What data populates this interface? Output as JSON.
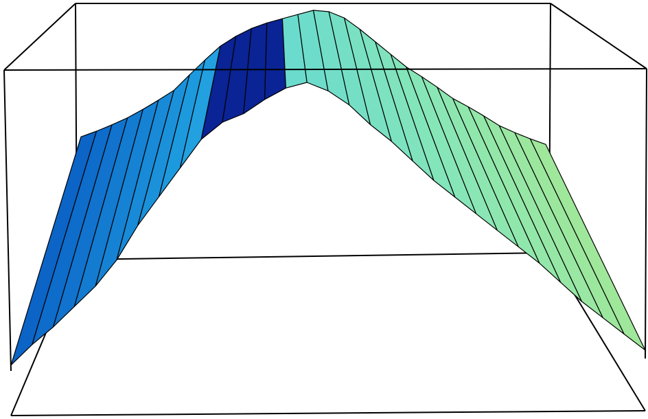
{
  "chart_data": {
    "type": "surface",
    "title": "",
    "xlabel": "",
    "ylabel": "",
    "zlabel": "",
    "grid": false,
    "axis_box": true,
    "colormap": [
      "#0a1b8f",
      "#0a5fc4",
      "#1f9ee0",
      "#5fd6d6",
      "#86e6b8",
      "#a8e890",
      "#6fdde6"
    ],
    "front_profile": [
      0.02,
      0.09,
      0.15,
      0.22,
      0.29,
      0.38,
      0.5,
      0.6,
      0.7,
      0.8,
      0.86,
      0.89,
      0.94,
      0.98,
      1.0,
      0.97,
      0.92,
      0.85,
      0.79,
      0.72,
      0.65,
      0.59,
      0.53,
      0.47,
      0.41,
      0.35,
      0.28,
      0.21,
      0.15,
      0.09,
      0.03
    ],
    "back_profile": [
      0.4,
      0.44,
      0.49,
      0.55,
      0.62,
      0.73,
      0.83,
      0.9,
      0.94,
      0.97,
      1.0,
      0.99,
      0.91,
      0.82,
      0.73,
      0.66,
      0.58,
      0.52,
      0.45,
      0.4,
      0.36
    ]
  }
}
